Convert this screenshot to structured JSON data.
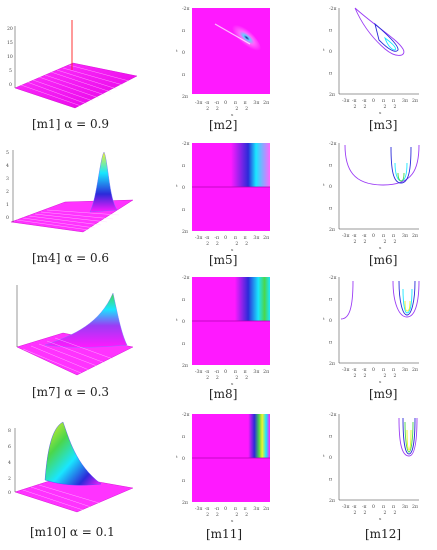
{
  "tick_labels": {
    "y": [
      "-2π",
      "π",
      "0",
      "π",
      "2π"
    ],
    "x": [
      "-3π",
      "-π",
      "-π",
      "0",
      "π",
      "π",
      "3π",
      "2π"
    ],
    "x_den": [
      "2",
      "2",
      "2",
      "2"
    ],
    "y_axis_label": "t",
    "x_axis_label": "x"
  },
  "rows": [
    {
      "alpha_label": "[m1] α = 0.9",
      "mid_label": "[m2]",
      "right_label": "[m3]",
      "z_ticks": [
        "20",
        "15",
        "10",
        "5",
        "0"
      ]
    },
    {
      "alpha_label": "[m4] α = 0.6",
      "mid_label": "[m5]",
      "right_label": "[m6]",
      "z_ticks": [
        "5",
        "4",
        "3",
        "2",
        "1",
        "0"
      ]
    },
    {
      "alpha_label": "[m7] α = 0.3",
      "mid_label": "[m8]",
      "right_label": "[m9]",
      "z_ticks": []
    },
    {
      "alpha_label": "[m10] α = 0.1",
      "mid_label": "[m11]",
      "right_label": "[m12]",
      "z_ticks": [
        "8",
        "6",
        "4",
        "2",
        "0"
      ]
    }
  ],
  "colors": {
    "magenta": "#ff19ff",
    "cyan": "#19e6ff",
    "blue": "#2b2bd9",
    "yellow": "#f2f22b",
    "green": "#4bd64b",
    "purple": "#9b3cf5"
  }
}
